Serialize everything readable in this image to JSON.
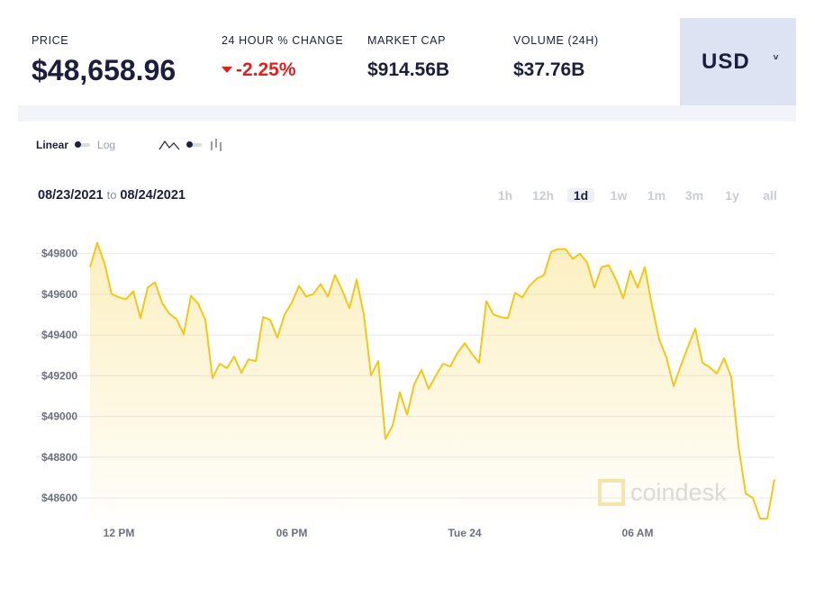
{
  "header": {
    "stats": [
      {
        "label": "PRICE",
        "value": "$48,658.96"
      },
      {
        "label": "24 HOUR % CHANGE",
        "value": "-2.25%"
      },
      {
        "label": "MARKET CAP",
        "value": "$914.56B"
      },
      {
        "label": "VOLUME (24H)",
        "value": "$37.76B"
      }
    ],
    "currency": "USD"
  },
  "controls": {
    "linear": "Linear",
    "log": "Log",
    "date_from": "08/23/2021",
    "date_sep": "to",
    "date_to": "08/24/2021",
    "ranges": [
      "1h",
      "12h",
      "1d",
      "1w",
      "1m",
      "3m",
      "1y",
      "all"
    ],
    "selected_range": "1d"
  },
  "chart_data": {
    "type": "line",
    "watermark": "coindesk",
    "color": "#f2c71c",
    "grid": true,
    "categories": [
      null,
      null,
      null,
      null,
      "12 PM",
      null,
      null,
      null,
      null,
      null,
      null,
      null,
      null,
      null,
      null,
      null,
      null,
      null,
      null,
      null,
      null,
      null,
      null,
      null,
      null,
      null,
      null,
      null,
      "06 PM",
      null,
      null,
      null,
      null,
      null,
      null,
      null,
      null,
      null,
      null,
      null,
      null,
      null,
      null,
      null,
      null,
      null,
      null,
      null,
      null,
      null,
      null,
      null,
      "Tue 24",
      null,
      null,
      null,
      null,
      null,
      null,
      null,
      null,
      null,
      null,
      null,
      null,
      null,
      null,
      null,
      null,
      null,
      null,
      null,
      null,
      null,
      null,
      null,
      "06 AM",
      null,
      null,
      null,
      null,
      null,
      null,
      null,
      null,
      null,
      null,
      null,
      null,
      null,
      null,
      null,
      null,
      null,
      null,
      null
    ],
    "values": [
      49734,
      49853,
      49752,
      49602,
      49585,
      49576,
      49615,
      49483,
      49633,
      49659,
      49558,
      49505,
      49479,
      49404,
      49593,
      49554,
      49475,
      49189,
      49259,
      49237,
      49294,
      49215,
      49281,
      49272,
      49488,
      49475,
      49387,
      49501,
      49558,
      49642,
      49589,
      49602,
      49651,
      49589,
      49694,
      49620,
      49532,
      49673,
      49501,
      49202,
      49272,
      48890,
      48956,
      49119,
      49009,
      49158,
      49229,
      49136,
      49202,
      49259,
      49246,
      49312,
      49360,
      49308,
      49264,
      49567,
      49501,
      49488,
      49483,
      49607,
      49585,
      49642,
      49677,
      49694,
      49809,
      49822,
      49822,
      49774,
      49800,
      49756,
      49633,
      49734,
      49743,
      49673,
      49580,
      49716,
      49633,
      49734,
      49545,
      49378,
      49290,
      49149,
      49250,
      49343,
      49431,
      49264,
      49242,
      49211,
      49286,
      49193,
      48855,
      48622,
      48600,
      48499,
      48499,
      48692
    ],
    "ylim": [
      48490,
      49940
    ],
    "yticks": [
      {
        "value": 48600,
        "label": "$48600"
      },
      {
        "value": 48800,
        "label": "$48800"
      },
      {
        "value": 49000,
        "label": "$49000"
      },
      {
        "value": 49200,
        "label": "$49200"
      },
      {
        "value": 49400,
        "label": "$49400"
      },
      {
        "value": 49600,
        "label": "$49600"
      },
      {
        "value": 49800,
        "label": "$49800"
      }
    ]
  }
}
